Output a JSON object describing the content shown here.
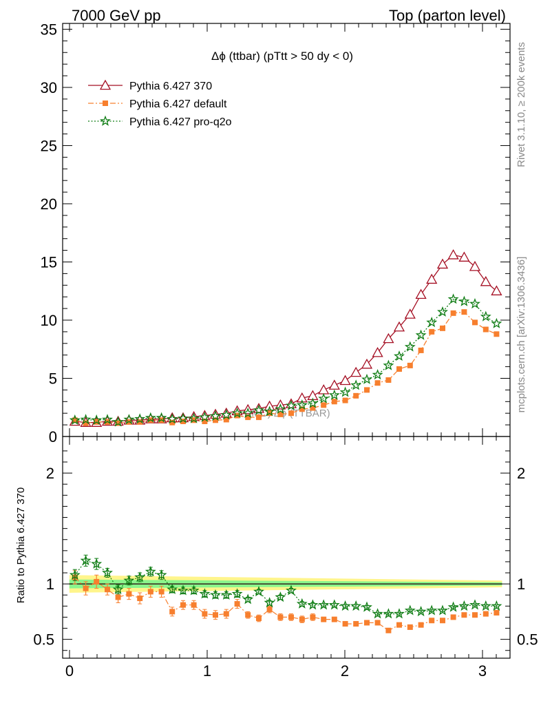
{
  "header": {
    "left": "7000 GeV pp",
    "right": "Top (parton level)"
  },
  "side_labels": {
    "rivet": "Rivet 3.1.10, ≥ 200k events",
    "mcplots": "mcplots.cern.ch [arXiv:1306.3436]"
  },
  "chart_data": {
    "type": "line",
    "title": "Δϕ (ttbar) (pTtt > 50 dy < 0)",
    "watermark": "(MC) Δϕ (TTBAR)",
    "xlabel": "",
    "xlim": [
      -0.05,
      3.2
    ],
    "x_ticks": [
      0,
      1,
      2,
      3
    ],
    "main": {
      "ylabel": "",
      "ylim": [
        0,
        35.5
      ],
      "y_ticks": [
        0,
        5,
        10,
        15,
        20,
        25,
        30,
        35
      ],
      "legend_position": "top-left",
      "x": [
        0.039,
        0.118,
        0.196,
        0.275,
        0.353,
        0.432,
        0.511,
        0.589,
        0.668,
        0.746,
        0.825,
        0.903,
        0.982,
        1.06,
        1.139,
        1.218,
        1.296,
        1.375,
        1.453,
        1.532,
        1.61,
        1.689,
        1.767,
        1.846,
        1.924,
        2.003,
        2.081,
        2.16,
        2.238,
        2.317,
        2.395,
        2.474,
        2.553,
        2.631,
        2.71,
        2.788,
        2.867,
        2.945,
        3.024,
        3.102
      ],
      "series": [
        {
          "name": "Pythia 6.427 370",
          "color": "#a50f23",
          "marker": "triangle-open",
          "linestyle": "solid",
          "values": [
            1.3,
            1.2,
            1.2,
            1.3,
            1.3,
            1.4,
            1.4,
            1.5,
            1.5,
            1.6,
            1.6,
            1.7,
            1.8,
            1.9,
            2.0,
            2.2,
            2.3,
            2.4,
            2.6,
            2.7,
            2.8,
            3.3,
            3.5,
            4.0,
            4.4,
            4.8,
            5.5,
            6.2,
            7.2,
            8.4,
            9.4,
            10.5,
            12.2,
            13.5,
            14.8,
            15.6,
            15.4,
            14.6,
            13.3,
            12.5
          ]
        },
        {
          "name": "Pythia 6.427 default",
          "color": "#f77f2e",
          "marker": "square",
          "linestyle": "dashdot",
          "values": [
            1.4,
            1.15,
            1.25,
            1.25,
            1.15,
            1.25,
            1.25,
            1.4,
            1.4,
            1.2,
            1.3,
            1.4,
            1.3,
            1.4,
            1.45,
            1.8,
            1.65,
            1.65,
            2.0,
            1.9,
            2.0,
            2.35,
            2.45,
            2.7,
            3.0,
            3.1,
            3.5,
            4.0,
            4.6,
            4.85,
            5.8,
            6.1,
            7.4,
            9.0,
            9.3,
            10.6,
            10.7,
            9.8,
            9.2,
            8.8
          ]
        },
        {
          "name": "Pythia 6.427 pro-q2o",
          "color": "#0e7c13",
          "marker": "star-open",
          "linestyle": "dotted",
          "values": [
            1.4,
            1.45,
            1.4,
            1.45,
            1.25,
            1.45,
            1.5,
            1.6,
            1.6,
            1.5,
            1.55,
            1.55,
            1.65,
            1.75,
            1.85,
            2.0,
            2.0,
            2.25,
            2.15,
            2.35,
            2.65,
            2.7,
            2.85,
            3.25,
            3.55,
            3.8,
            4.4,
            4.9,
            5.3,
            6.1,
            6.9,
            7.7,
            8.7,
            9.8,
            10.7,
            11.8,
            11.6,
            11.4,
            10.3,
            9.7
          ]
        }
      ]
    },
    "ratio": {
      "ylabel": "Ratio to Pythia 6.427 370",
      "ylim": [
        0.33,
        2.33
      ],
      "y_ticks": [
        0.5,
        1,
        2
      ],
      "band_yellow_half_width_start": 0.08,
      "band_yellow_half_width_end": 0.03,
      "band_green_half_width_start": 0.04,
      "band_green_half_width_end": 0.015,
      "series": [
        {
          "name": "Pythia 6.427 default",
          "color": "#f77f2e",
          "marker": "square",
          "values": [
            1.06,
            0.96,
            1.02,
            0.95,
            0.88,
            0.91,
            0.87,
            0.93,
            0.93,
            0.75,
            0.81,
            0.81,
            0.73,
            0.72,
            0.73,
            0.82,
            0.72,
            0.69,
            0.77,
            0.7,
            0.7,
            0.68,
            0.7,
            0.68,
            0.68,
            0.64,
            0.64,
            0.65,
            0.65,
            0.58,
            0.63,
            0.61,
            0.63,
            0.67,
            0.67,
            0.7,
            0.72,
            0.72,
            0.73,
            0.74
          ],
          "errors": [
            0.06,
            0.06,
            0.06,
            0.05,
            0.05,
            0.05,
            0.05,
            0.05,
            0.05,
            0.04,
            0.04,
            0.04,
            0.04,
            0.04,
            0.04,
            0.04,
            0.03,
            0.03,
            0.03,
            0.03,
            0.03,
            0.03,
            0.03,
            0.02,
            0.02,
            0.02,
            0.02,
            0.02,
            0.02,
            0.02,
            0.015,
            0.015,
            0.015,
            0.01,
            0.01,
            0.01,
            0.01,
            0.01,
            0.01,
            0.01
          ]
        },
        {
          "name": "Pythia 6.427 pro-q2o",
          "color": "#0e7c13",
          "marker": "star-open",
          "values": [
            1.08,
            1.21,
            1.18,
            1.1,
            0.95,
            1.03,
            1.06,
            1.11,
            1.08,
            0.95,
            0.94,
            0.94,
            0.91,
            0.9,
            0.9,
            0.91,
            0.86,
            0.93,
            0.83,
            0.88,
            0.94,
            0.82,
            0.81,
            0.81,
            0.81,
            0.8,
            0.8,
            0.79,
            0.73,
            0.73,
            0.73,
            0.76,
            0.75,
            0.76,
            0.76,
            0.79,
            0.8,
            0.81,
            0.8,
            0.8
          ],
          "errors": [
            0.05,
            0.05,
            0.05,
            0.04,
            0.04,
            0.04,
            0.04,
            0.04,
            0.04,
            0.03,
            0.03,
            0.03,
            0.03,
            0.03,
            0.03,
            0.03,
            0.02,
            0.02,
            0.02,
            0.02,
            0.02,
            0.02,
            0.02,
            0.015,
            0.015,
            0.015,
            0.015,
            0.015,
            0.01,
            0.01,
            0.01,
            0.01,
            0.01,
            0.01,
            0.01,
            0.01,
            0.01,
            0.01,
            0.01,
            0.01
          ]
        }
      ]
    }
  }
}
